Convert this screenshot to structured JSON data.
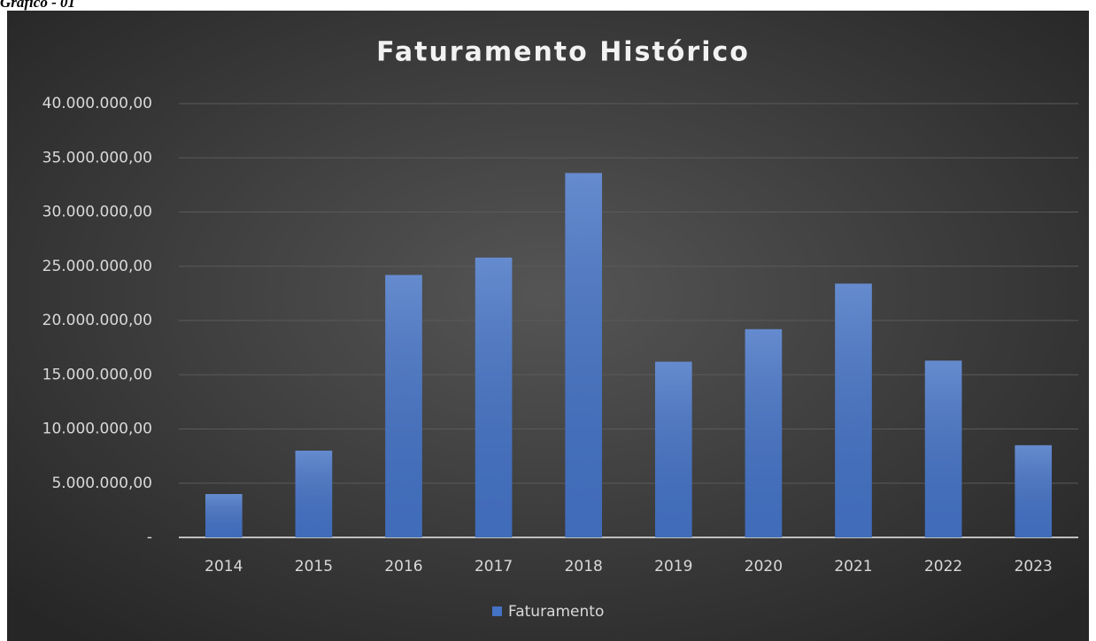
{
  "caption": "Gráfico - 01",
  "chart_data": {
    "type": "bar",
    "title": "Faturamento Histórico",
    "categories": [
      "2014",
      "2015",
      "2016",
      "2017",
      "2018",
      "2019",
      "2020",
      "2021",
      "2022",
      "2023"
    ],
    "series": [
      {
        "name": "Faturamento",
        "color": "#4472c4",
        "values": [
          4000000,
          8000000,
          24200000,
          25800000,
          33600000,
          16200000,
          19200000,
          23400000,
          16300000,
          8500000
        ]
      }
    ],
    "ylim": [
      0,
      40000000
    ],
    "yticks": [
      {
        "value": 0,
        "label": "-"
      },
      {
        "value": 5000000,
        "label": "5.000.000,00"
      },
      {
        "value": 10000000,
        "label": "10.000.000,00"
      },
      {
        "value": 15000000,
        "label": "15.000.000,00"
      },
      {
        "value": 20000000,
        "label": "20.000.000,00"
      },
      {
        "value": 25000000,
        "label": "25.000.000,00"
      },
      {
        "value": 30000000,
        "label": "30.000.000,00"
      },
      {
        "value": 35000000,
        "label": "35.000.000,00"
      },
      {
        "value": 40000000,
        "label": "40.000.000,00"
      }
    ],
    "grid": true,
    "legend": "bottom"
  }
}
